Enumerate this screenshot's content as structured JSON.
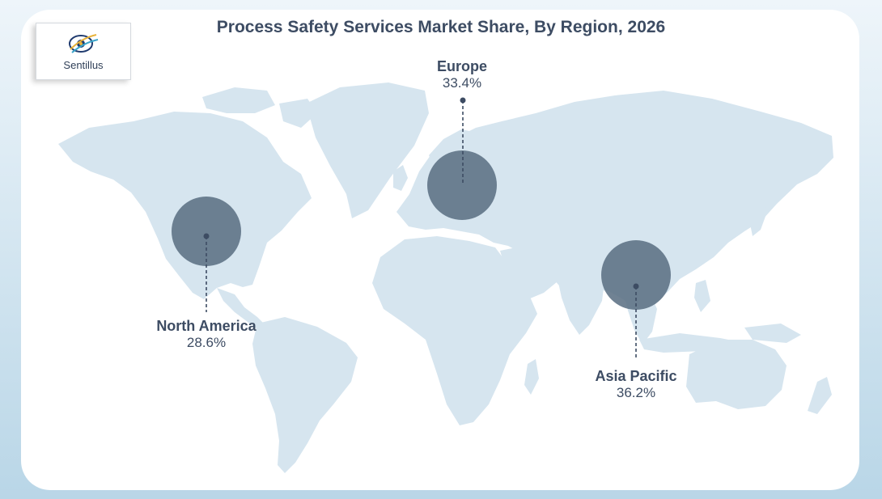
{
  "title": "Process Safety Services Market Share, By Region, 2026",
  "logo": {
    "text": "Sentillus",
    "icon": "sentillus-logo-icon"
  },
  "colors": {
    "land": "#d6e5ef",
    "bubble": "#5c7184",
    "text": "#3d4c63",
    "leader": "#3d4c63"
  },
  "regions": [
    {
      "name": "North America",
      "share": "28.6%"
    },
    {
      "name": "Europe",
      "share": "33.4%"
    },
    {
      "name": "Asia Pacific",
      "share": "36.2%"
    }
  ]
}
